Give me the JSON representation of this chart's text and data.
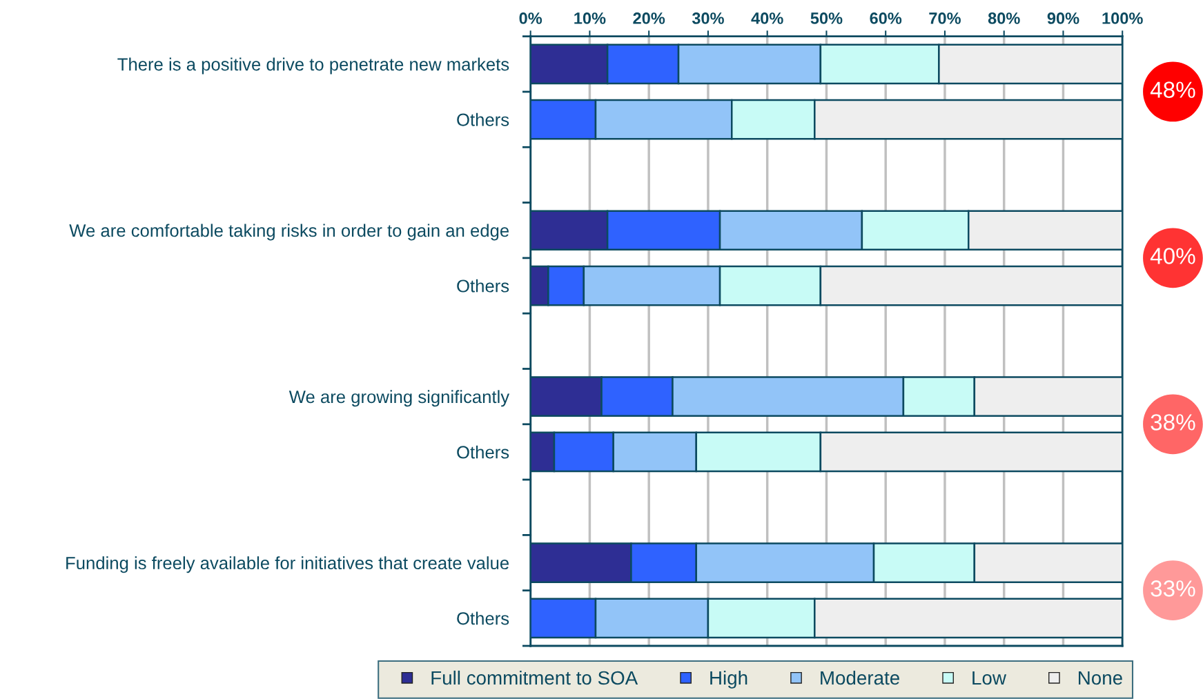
{
  "chart_data": {
    "type": "bar",
    "orientation": "horizontal",
    "stacked": true,
    "categories": [
      "There is a positive drive to penetrate new markets",
      "Others",
      null,
      "We are comfortable taking risks in order to gain an edge",
      "Others",
      null,
      "We are growing significantly",
      "Others",
      null,
      "Funding is freely available for initiatives that create value",
      "Others"
    ],
    "series": [
      {
        "name": "Full commitment to SOA",
        "color": "#2e2e94",
        "values": [
          13,
          0,
          null,
          13,
          3,
          null,
          12,
          4,
          null,
          17,
          0
        ]
      },
      {
        "name": "High",
        "color": "#2f62ff",
        "values": [
          12,
          11,
          null,
          19,
          6,
          null,
          12,
          10,
          null,
          11,
          11
        ]
      },
      {
        "name": "Moderate",
        "color": "#92c4f8",
        "values": [
          24,
          23,
          null,
          24,
          23,
          null,
          39,
          14,
          null,
          30,
          19
        ]
      },
      {
        "name": "Low",
        "color": "#c8fbf6",
        "values": [
          20,
          14,
          null,
          18,
          17,
          null,
          12,
          21,
          null,
          17,
          18
        ]
      },
      {
        "name": "None",
        "color": "#eeeeee",
        "values": [
          31,
          52,
          null,
          26,
          51,
          null,
          25,
          51,
          null,
          25,
          52
        ]
      }
    ],
    "xlim": [
      0,
      100
    ],
    "xticks": [
      {
        "value": 0,
        "label": "0%"
      },
      {
        "value": 10,
        "label": "10%"
      },
      {
        "value": 20,
        "label": "20%"
      },
      {
        "value": 30,
        "label": "30%"
      },
      {
        "value": 40,
        "label": "40%"
      },
      {
        "value": 50,
        "label": "50%"
      },
      {
        "value": 60,
        "label": "60%"
      },
      {
        "value": 70,
        "label": "70%"
      },
      {
        "value": 80,
        "label": "80%"
      },
      {
        "value": 90,
        "label": "90%"
      },
      {
        "value": 100,
        "label": "100%"
      }
    ],
    "grid": "x",
    "legend": "bottom",
    "annotations": [
      "48%",
      "40%",
      "38%",
      "33%"
    ]
  }
}
